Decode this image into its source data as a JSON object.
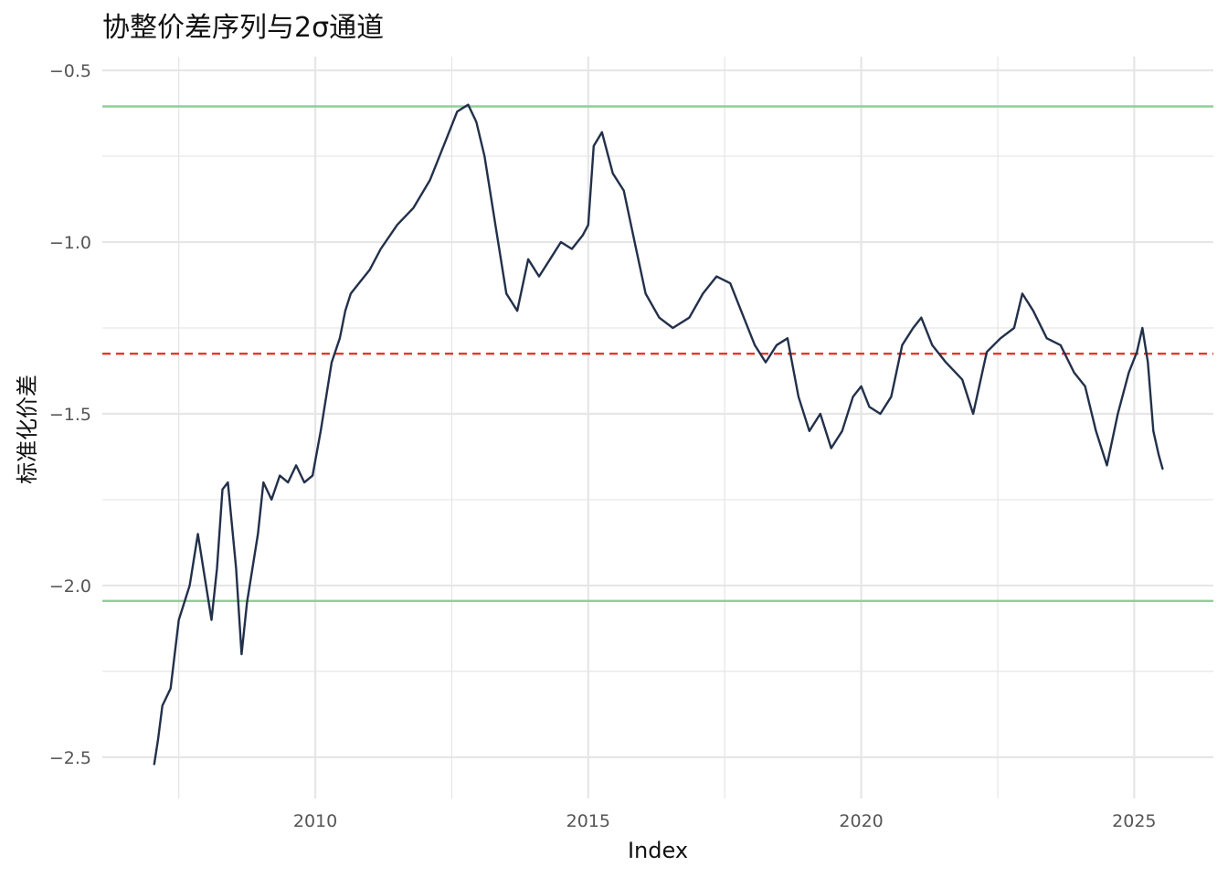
{
  "chart_data": {
    "type": "line",
    "title": "协整价差序列与2σ通道",
    "xlabel": "Index",
    "ylabel": "标准化价差",
    "xlim": [
      2006.1,
      2026.45
    ],
    "ylim": [
      -2.62,
      -0.46
    ],
    "x_ticks": [
      2010,
      2015,
      2020,
      2025
    ],
    "x_tick_labels": [
      "2010",
      "2015",
      "2020",
      "2025"
    ],
    "y_ticks": [
      -2.5,
      -2.0,
      -1.5,
      -1.0,
      -0.5
    ],
    "y_tick_labels": [
      "−2.5",
      "−2.0",
      "−1.5",
      "−1.0",
      "−0.5"
    ],
    "grid": true,
    "legend": "none",
    "colors": {
      "series": "#22304a",
      "mean_line": "#e03a2f",
      "band_lines": "#8ecf9a",
      "grid": "#e6e6e6",
      "background": "#ffffff"
    },
    "reference_lines": [
      {
        "y": -0.605,
        "style": "solid",
        "role": "upper-band"
      },
      {
        "y": -1.325,
        "style": "dashed",
        "role": "mean"
      },
      {
        "y": -2.045,
        "style": "solid",
        "role": "lower-band"
      }
    ],
    "series": [
      {
        "x": [
          2007.05,
          2007.12,
          2007.2,
          2007.35,
          2007.5,
          2007.7,
          2007.85,
          2007.95,
          2008.1,
          2008.2,
          2008.3,
          2008.4,
          2008.55,
          2008.65,
          2008.75,
          2008.85,
          2008.95,
          2009.05,
          2009.2,
          2009.35,
          2009.5,
          2009.65,
          2009.8,
          2009.95,
          2010.1,
          2010.3,
          2010.45,
          2010.55,
          2010.65,
          2010.8,
          2011.0,
          2011.2,
          2011.5,
          2011.8,
          2012.1,
          2012.4,
          2012.6,
          2012.8,
          2012.95,
          2013.1,
          2013.3,
          2013.5,
          2013.7,
          2013.9,
          2014.1,
          2014.3,
          2014.5,
          2014.7,
          2014.9,
          2015.0,
          2015.1,
          2015.25,
          2015.45,
          2015.65,
          2015.85,
          2016.05,
          2016.3,
          2016.55,
          2016.85,
          2017.1,
          2017.35,
          2017.6,
          2017.85,
          2018.05,
          2018.25,
          2018.45,
          2018.65,
          2018.85,
          2019.05,
          2019.25,
          2019.45,
          2019.65,
          2019.85,
          2020.0,
          2020.15,
          2020.35,
          2020.55,
          2020.75,
          2020.95,
          2021.1,
          2021.3,
          2021.55,
          2021.85,
          2022.05,
          2022.3,
          2022.55,
          2022.8,
          2022.95,
          2023.15,
          2023.4,
          2023.65,
          2023.9,
          2024.1,
          2024.3,
          2024.5,
          2024.7,
          2024.9,
          2025.05,
          2025.15,
          2025.25,
          2025.35,
          2025.45,
          2025.52
        ],
        "y": [
          -2.52,
          -2.45,
          -2.35,
          -2.3,
          -2.1,
          -2.0,
          -1.85,
          -1.95,
          -2.1,
          -1.95,
          -1.72,
          -1.7,
          -1.95,
          -2.2,
          -2.05,
          -1.95,
          -1.85,
          -1.7,
          -1.75,
          -1.68,
          -1.7,
          -1.65,
          -1.7,
          -1.68,
          -1.55,
          -1.35,
          -1.28,
          -1.2,
          -1.15,
          -1.12,
          -1.08,
          -1.02,
          -0.95,
          -0.9,
          -0.82,
          -0.7,
          -0.62,
          -0.6,
          -0.65,
          -0.75,
          -0.95,
          -1.15,
          -1.2,
          -1.05,
          -1.1,
          -1.05,
          -1.0,
          -1.02,
          -0.98,
          -0.95,
          -0.72,
          -0.68,
          -0.8,
          -0.85,
          -1.0,
          -1.15,
          -1.22,
          -1.25,
          -1.22,
          -1.15,
          -1.1,
          -1.12,
          -1.22,
          -1.3,
          -1.35,
          -1.3,
          -1.28,
          -1.45,
          -1.55,
          -1.5,
          -1.6,
          -1.55,
          -1.45,
          -1.42,
          -1.48,
          -1.5,
          -1.45,
          -1.3,
          -1.25,
          -1.22,
          -1.3,
          -1.35,
          -1.4,
          -1.5,
          -1.32,
          -1.28,
          -1.25,
          -1.15,
          -1.2,
          -1.28,
          -1.3,
          -1.38,
          -1.42,
          -1.55,
          -1.65,
          -1.5,
          -1.38,
          -1.32,
          -1.25,
          -1.35,
          -1.55,
          -1.62,
          -1.66
        ]
      }
    ]
  }
}
